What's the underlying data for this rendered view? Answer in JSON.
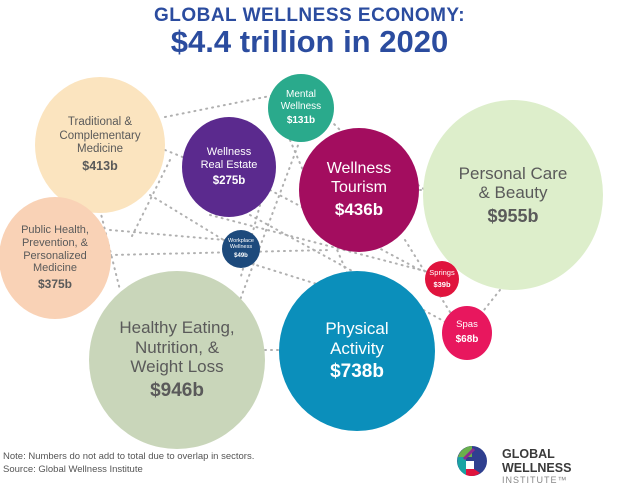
{
  "title": {
    "line1": "GLOBAL WELLNESS ECONOMY:",
    "line2": "$4.4 trillion in 2020"
  },
  "colors": {
    "title": "#2b4c9f",
    "links": "#b0b0b0"
  },
  "sectors": [
    {
      "id": "traditional",
      "label": [
        "Traditional &",
        "Complementary",
        "Medicine"
      ],
      "value": "$413b",
      "color": "#fbe4bf",
      "text_color": "#5a5a5a"
    },
    {
      "id": "public-health",
      "label": [
        "Public Health,",
        "Prevention, &",
        "Personalized",
        "Medicine"
      ],
      "value": "$375b",
      "color": "#f9d2b6",
      "text_color": "#5a5a5a"
    },
    {
      "id": "real-estate",
      "label": [
        "Wellness",
        "Real Estate"
      ],
      "value": "$275b",
      "color": "#5b2a8e",
      "text_color": "#ffffff"
    },
    {
      "id": "mental",
      "label": [
        "Mental",
        "Wellness"
      ],
      "value": "$131b",
      "color": "#2aaa8c",
      "text_color": "#ffffff"
    },
    {
      "id": "workplace",
      "label": [
        "Workplace",
        "Wellness"
      ],
      "value": "$49b",
      "color": "#1d4a7c",
      "text_color": "#ffffff"
    },
    {
      "id": "tourism",
      "label": [
        "Wellness",
        "Tourism"
      ],
      "value": "$436b",
      "color": "#a30d5f",
      "text_color": "#ffffff"
    },
    {
      "id": "personal-care",
      "label": [
        "Personal Care",
        "& Beauty"
      ],
      "value": "$955b",
      "color": "#ddeecb",
      "text_color": "#5a5a5a"
    },
    {
      "id": "springs",
      "label": [
        "Springs"
      ],
      "value": "$39b",
      "color": "#e0143d",
      "text_color": "#ffffff"
    },
    {
      "id": "spas",
      "label": [
        "Spas"
      ],
      "value": "$68b",
      "color": "#e8175e",
      "text_color": "#ffffff"
    },
    {
      "id": "healthy-eating",
      "label": [
        "Healthy Eating,",
        "Nutrition, &",
        "Weight Loss"
      ],
      "value": "$946b",
      "color": "#c9d6ba",
      "text_color": "#5a5a5a"
    },
    {
      "id": "physical",
      "label": [
        "Physical",
        "Activity"
      ],
      "value": "$738b",
      "color": "#0b8fbb",
      "text_color": "#ffffff"
    }
  ],
  "note": "Note: Numbers do not add to total due to overlap in sectors.",
  "source": "Source: Global Wellness Institute",
  "logo": {
    "line1": "GLOBAL WELLNESS",
    "line2": "INSTITUTE™"
  }
}
